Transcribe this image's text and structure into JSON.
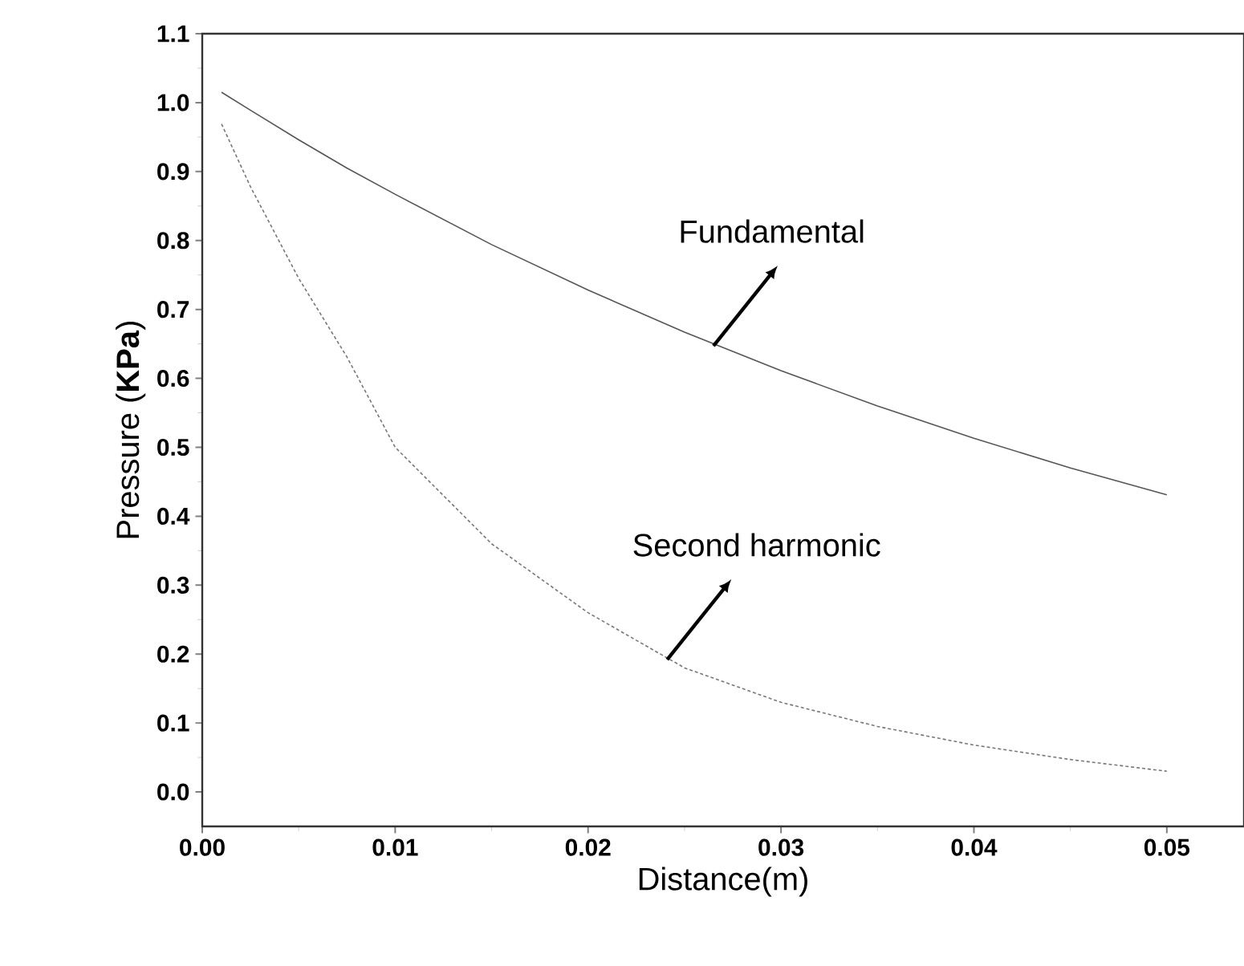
{
  "chart_data": {
    "type": "line",
    "xlabel": "Distance(m)",
    "ylabel": "Pressure (**KPa**)",
    "x": [
      0.001,
      0.0025,
      0.005,
      0.0075,
      0.01,
      0.015,
      0.02,
      0.025,
      0.03,
      0.035,
      0.04,
      0.045,
      0.05
    ],
    "series": [
      {
        "color": "#555555",
        "line_style": "solid",
        "values": [
          1.015,
          0.989,
          0.946,
          0.905,
          0.867,
          0.794,
          0.728,
          0.667,
          0.611,
          0.56,
          0.513,
          0.47,
          0.431
        ]
      },
      {
        "color": "#777777",
        "line_style": "dashed",
        "values": [
          0.969,
          0.878,
          0.745,
          0.631,
          0.5,
          0.36,
          0.26,
          0.18,
          0.13,
          0.095,
          0.068,
          0.047,
          0.03
        ]
      }
    ],
    "xlim": [
      0,
      0.054
    ],
    "ylim": [
      -0.05,
      1.1
    ],
    "xticks": [
      {
        "value": 0,
        "label": "0.00"
      },
      {
        "value": 0.01,
        "label": "0.01"
      },
      {
        "value": 0.02,
        "label": "0.02"
      },
      {
        "value": 0.03,
        "label": "0.03"
      },
      {
        "value": 0.04,
        "label": "0.04"
      },
      {
        "value": 0.05,
        "label": "0.05"
      }
    ],
    "yticks": [
      {
        "value": 0,
        "label": "0.0"
      },
      0.1,
      0.2,
      0.3,
      0.4,
      0.5,
      0.6,
      0.7,
      0.8,
      0.9,
      {
        "value": 1,
        "label": "1.0"
      },
      1.1
    ],
    "marker": "none",
    "annotations": [
      {
        "text": "Fundamental",
        "x": 0.0265,
        "y": 0.647
      },
      {
        "text": "Second harmonic",
        "x": 0.0241,
        "y": 0.192
      }
    ]
  }
}
